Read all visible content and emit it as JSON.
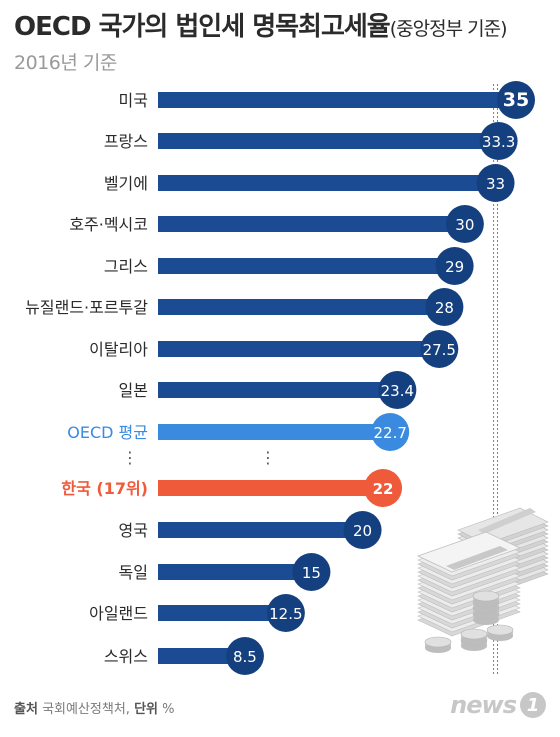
{
  "header": {
    "title_main": "OECD 국가의 법인세 명목최고세율",
    "title_paren": "(중앙정부 기준)",
    "subtitle": "2016년 기준"
  },
  "footer": {
    "source_label": "출처",
    "source_value": "국회예산정책처,",
    "unit_label": "단위",
    "unit_value": "%",
    "logo_text": "news",
    "logo_badge": "1"
  },
  "colors": {
    "bar_default": "#1b4b93",
    "bubble_default": "#15407f",
    "oecd_average": "#3a8ae0",
    "korea": "#ef5a3a",
    "label_text": "#2b2b2b",
    "dash_red": "#e6584b",
    "dash_blue": "#4c7fd9"
  },
  "chart_data": {
    "type": "bar",
    "orientation": "horizontal",
    "title": "OECD 국가의 법인세 명목최고세율(중앙정부 기준)",
    "subtitle": "2016년 기준",
    "unit": "%",
    "categories": [
      "미국",
      "프랑스",
      "벨기에",
      "호주·멕시코",
      "그리스",
      "뉴질랜드·포르투갈",
      "이탈리아",
      "일본",
      "OECD 평균",
      "한국 (17위)",
      "영국",
      "독일",
      "아일랜드",
      "스위스"
    ],
    "values": [
      35,
      33.3,
      33,
      30,
      29,
      28,
      27.5,
      23.4,
      22.7,
      22,
      20,
      15,
      12.5,
      8.5
    ],
    "value_labels": [
      "35",
      "33.3",
      "33",
      "30",
      "29",
      "28",
      "27.5",
      "23.4",
      "22.7",
      "22",
      "20",
      "15",
      "12.5",
      "8.5"
    ],
    "highlight": {
      "OECD 평균": "oecd_average",
      "한국 (17위)": "korea"
    },
    "ellipsis_after_index": 8,
    "ellipsis_text": "⋮",
    "xlim": [
      0,
      35
    ],
    "reference_line_value": 33
  },
  "illustration": "money-stack-and-coins-icon"
}
